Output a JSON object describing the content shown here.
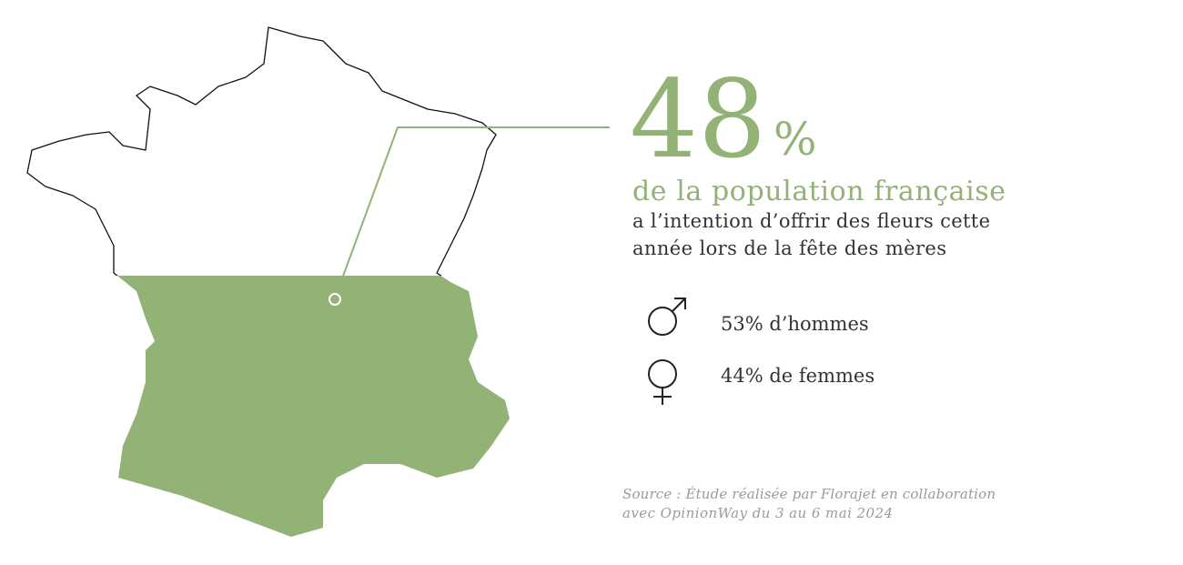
{
  "headline": {
    "number": "48",
    "unit": "%",
    "subtitle": "de la population française",
    "text_lines": [
      "a l’intention d’offrir des fleurs cette",
      "année lors de la fête des mères"
    ]
  },
  "breakdown": [
    {
      "label": "53% d’hommes"
    },
    {
      "label": "44% de femmes"
    }
  ],
  "source": [
    "Source : Étude réalisée par Florajet en collaboration",
    "avec OpinionWay du 3 au 6 mai 2024"
  ]
}
